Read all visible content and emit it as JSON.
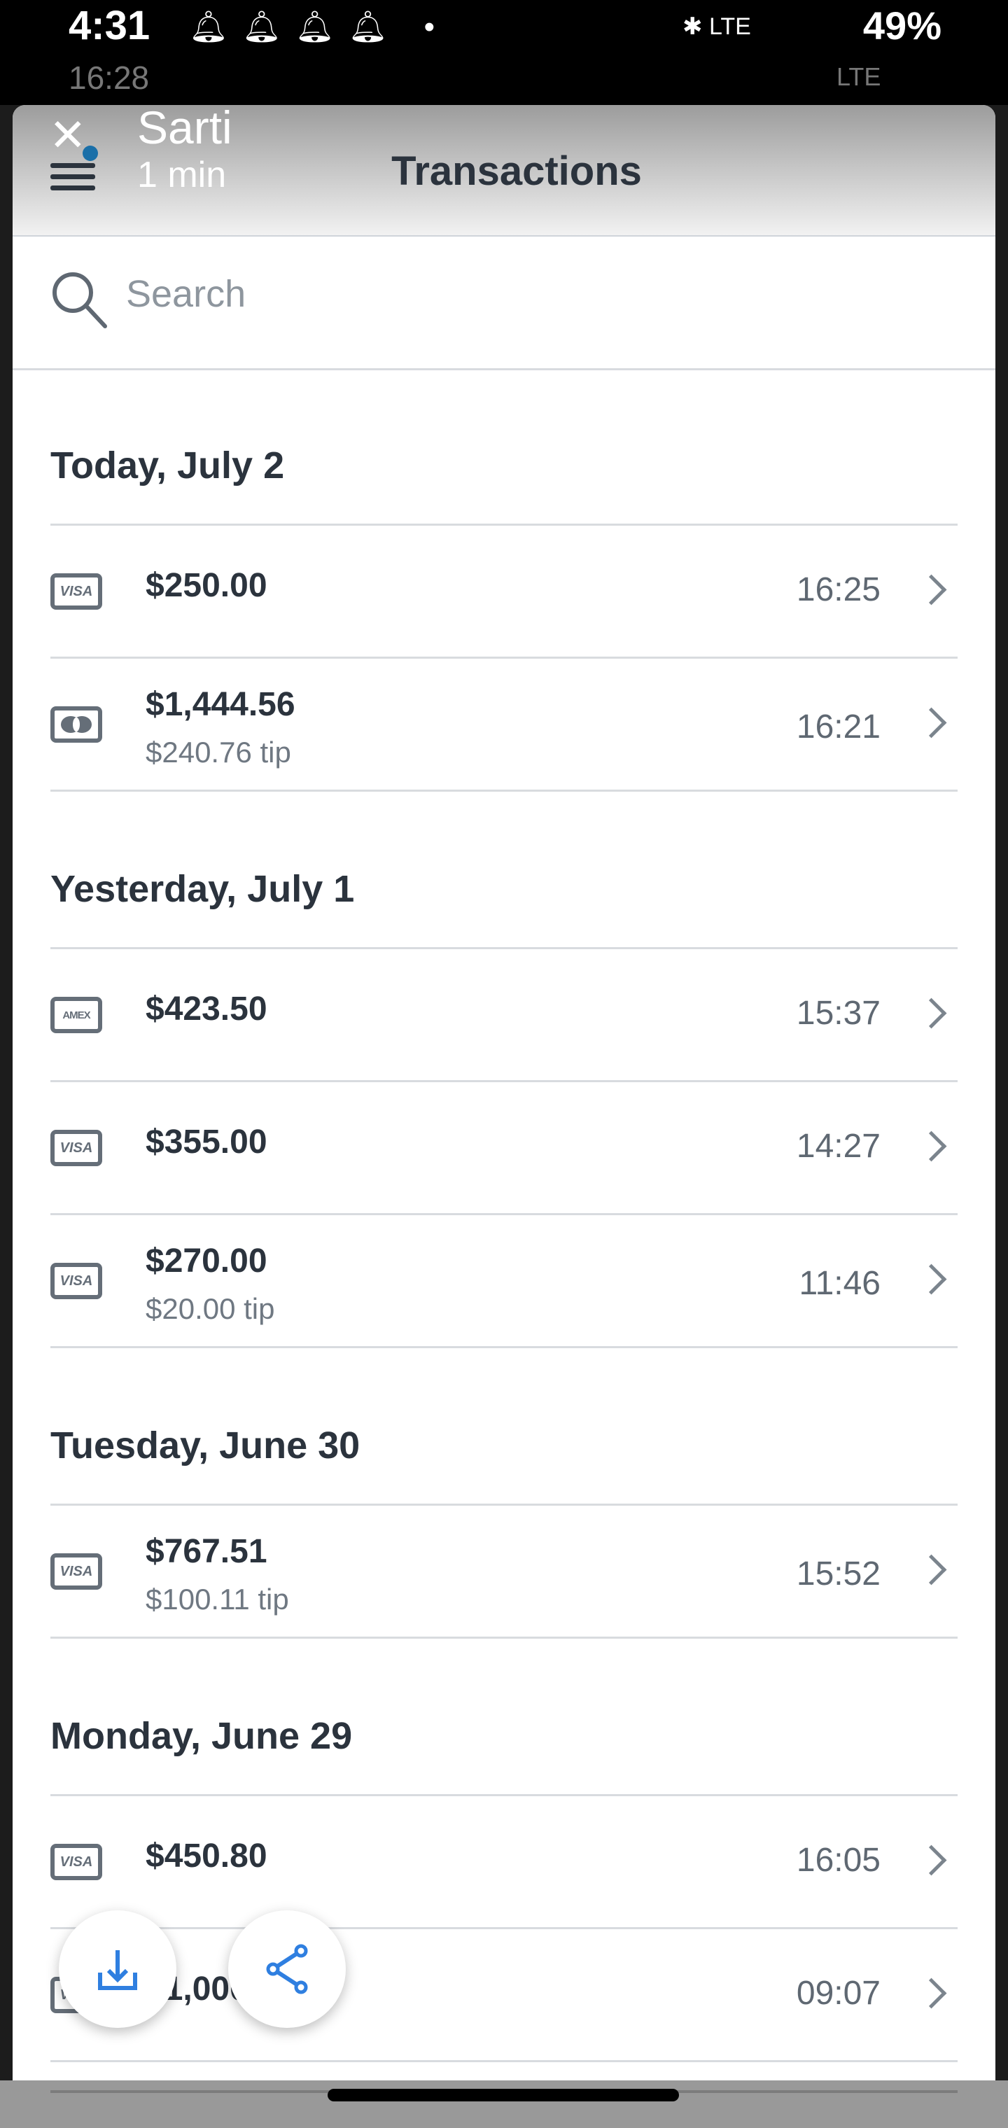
{
  "status_bar": {
    "time": "4:31",
    "time_behind": "16:28",
    "network": "LTE",
    "network_behind": "LTE",
    "battery": "49%",
    "notification_icons": [
      "bell-icon",
      "bell-icon",
      "bell-icon",
      "bell-icon"
    ]
  },
  "chat_bubble": {
    "name": "Sarti",
    "subtitle": "1 min"
  },
  "header": {
    "title": "Transactions"
  },
  "search": {
    "placeholder": "Search",
    "value": ""
  },
  "sections": [
    {
      "label": "Today, July 2",
      "transactions": [
        {
          "card": "visa",
          "amount": "$250.00",
          "tip": "",
          "time": "16:25"
        },
        {
          "card": "mastercard",
          "amount": "$1,444.56",
          "tip": "$240.76 tip",
          "time": "16:21"
        }
      ]
    },
    {
      "label": "Yesterday, July 1",
      "transactions": [
        {
          "card": "amex",
          "amount": "$423.50",
          "tip": "",
          "time": "15:37"
        },
        {
          "card": "visa",
          "amount": "$355.00",
          "tip": "",
          "time": "14:27"
        },
        {
          "card": "visa",
          "amount": "$270.00",
          "tip": "$20.00 tip",
          "time": "11:46"
        }
      ]
    },
    {
      "label": "Tuesday, June 30",
      "transactions": [
        {
          "card": "visa",
          "amount": "$767.51",
          "tip": "$100.11 tip",
          "time": "15:52"
        }
      ]
    },
    {
      "label": "Monday, June 29",
      "transactions": [
        {
          "card": "visa",
          "amount": "$450.80",
          "tip": "",
          "time": "16:05"
        },
        {
          "card": "visa",
          "amount": "$1,000.00",
          "tip": "",
          "time": "09:07"
        }
      ]
    }
  ],
  "card_labels": {
    "visa": "VISA",
    "amex": "AMEX"
  },
  "colors": {
    "accent": "#2f7fe0",
    "text": "#2b333d",
    "muted": "#6f7882"
  }
}
